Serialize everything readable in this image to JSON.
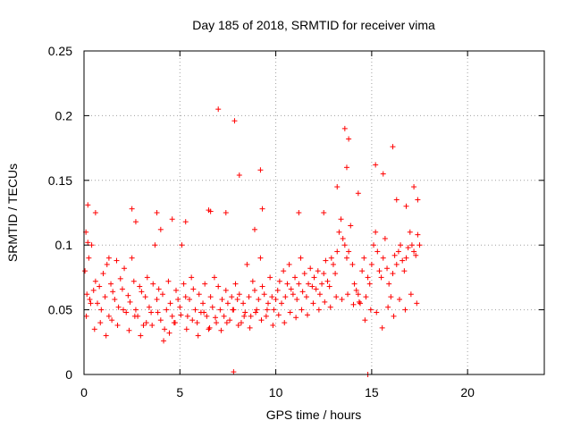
{
  "chart_data": {
    "type": "scatter",
    "title": "Day 185 of 2018, SRMTID for receiver vima",
    "xlabel": "GPS time / hours",
    "ylabel": "SRMTID / TECUs",
    "xlim": [
      0,
      24
    ],
    "ylim": [
      0,
      0.25
    ],
    "xticks": [
      0,
      5,
      10,
      15,
      20
    ],
    "xtick_labels": [
      "0",
      "5",
      "10",
      "15",
      "20"
    ],
    "yticks": [
      0,
      0.05,
      0.1,
      0.15,
      0.2,
      0.25
    ],
    "ytick_labels": [
      "0",
      "0.05",
      "0.1",
      "0.15",
      "0.2",
      "0.25"
    ],
    "grid": true,
    "marker": "+",
    "color": "#ff0000",
    "series": [
      {
        "name": "SRMTID",
        "x": [
          0.05,
          0.1,
          0.15,
          0.2,
          0.25,
          0.3,
          0.4,
          0.5,
          0.6,
          0.7,
          0.8,
          0.9,
          1.0,
          1.1,
          1.2,
          1.3,
          1.4,
          1.5,
          1.6,
          1.7,
          1.8,
          1.9,
          2.0,
          2.1,
          2.2,
          2.3,
          2.4,
          2.5,
          2.6,
          2.7,
          2.8,
          2.9,
          3.0,
          3.1,
          3.2,
          3.3,
          3.4,
          3.5,
          3.6,
          3.7,
          3.8,
          3.9,
          4.0,
          4.1,
          4.2,
          4.3,
          4.4,
          4.5,
          4.6,
          4.7,
          4.8,
          4.9,
          5.0,
          5.1,
          5.2,
          5.3,
          5.4,
          5.5,
          5.6,
          5.7,
          5.8,
          5.9,
          6.0,
          6.1,
          6.2,
          6.3,
          6.4,
          6.5,
          6.6,
          6.7,
          6.8,
          6.9,
          7.0,
          7.1,
          7.2,
          7.3,
          7.4,
          7.5,
          7.6,
          7.7,
          7.8,
          7.9,
          8.0,
          8.1,
          8.2,
          8.3,
          8.4,
          8.5,
          8.6,
          8.7,
          8.8,
          8.9,
          9.0,
          9.1,
          9.2,
          9.3,
          9.4,
          9.5,
          9.6,
          9.7,
          9.8,
          9.9,
          10.0,
          10.1,
          10.2,
          10.3,
          10.4,
          10.5,
          10.6,
          10.7,
          10.8,
          10.9,
          11.0,
          11.1,
          11.2,
          11.3,
          11.4,
          11.5,
          11.6,
          11.7,
          11.8,
          11.9,
          12.0,
          12.1,
          12.2,
          12.3,
          12.4,
          12.5,
          12.6,
          12.7,
          12.8,
          12.9,
          13.0,
          13.1,
          13.2,
          13.3,
          13.4,
          13.5,
          13.6,
          13.7,
          13.8,
          13.9,
          14.0,
          14.1,
          14.2,
          14.3,
          14.4,
          14.5,
          14.6,
          14.7,
          14.8,
          14.9,
          15.0,
          15.1,
          15.2,
          15.3,
          15.4,
          15.5,
          15.6,
          15.7,
          15.8,
          15.9,
          16.0,
          16.1,
          16.2,
          16.3,
          16.4,
          16.5,
          16.6,
          16.7,
          16.8,
          16.9,
          17.0,
          17.1,
          17.2,
          17.3,
          17.4,
          17.5,
          0.12,
          0.35,
          0.55,
          0.85,
          1.15,
          1.45,
          1.75,
          2.05,
          2.35,
          2.65,
          2.95,
          3.25,
          3.55,
          3.85,
          4.15,
          4.45,
          4.75,
          5.05,
          5.35,
          5.65,
          5.95,
          6.25,
          6.55,
          6.85,
          7.15,
          7.45,
          7.75,
          8.05,
          8.35,
          8.65,
          8.95,
          9.25,
          9.55,
          9.85,
          10.15,
          10.45,
          10.75,
          11.05,
          11.35,
          11.65,
          11.95,
          12.25,
          12.55,
          12.85,
          13.15,
          13.45,
          13.75,
          14.05,
          14.35,
          14.65,
          14.95,
          15.25,
          15.55,
          15.85,
          16.15,
          16.45,
          16.75,
          17.05,
          17.35,
          0.2,
          0.6,
          1.3,
          2.5,
          2.7,
          3.8,
          4.0,
          4.6,
          5.3,
          6.5,
          6.6,
          7.0,
          7.4,
          7.8,
          7.85,
          8.1,
          8.9,
          9.2,
          9.3,
          11.2,
          12.5,
          13.2,
          13.6,
          13.7,
          13.8,
          14.3,
          14.8,
          15.2,
          15.6,
          16.1,
          16.3,
          16.8,
          17.2,
          17.4
        ],
        "y": [
          0.08,
          0.11,
          0.062,
          0.131,
          0.09,
          0.058,
          0.1,
          0.065,
          0.072,
          0.055,
          0.068,
          0.05,
          0.078,
          0.06,
          0.085,
          0.045,
          0.07,
          0.064,
          0.058,
          0.088,
          0.052,
          0.074,
          0.066,
          0.082,
          0.048,
          0.061,
          0.056,
          0.09,
          0.072,
          0.05,
          0.045,
          0.068,
          0.064,
          0.038,
          0.06,
          0.075,
          0.052,
          0.048,
          0.07,
          0.1,
          0.058,
          0.066,
          0.042,
          0.062,
          0.035,
          0.05,
          0.072,
          0.055,
          0.045,
          0.04,
          0.065,
          0.058,
          0.052,
          0.1,
          0.07,
          0.06,
          0.045,
          0.058,
          0.075,
          0.066,
          0.05,
          0.04,
          0.062,
          0.048,
          0.055,
          0.07,
          0.045,
          0.035,
          0.06,
          0.052,
          0.075,
          0.04,
          0.068,
          0.05,
          0.058,
          0.045,
          0.065,
          0.055,
          0.042,
          0.06,
          0.05,
          0.07,
          0.058,
          0.062,
          0.04,
          0.055,
          0.048,
          0.085,
          0.06,
          0.045,
          0.072,
          0.065,
          0.05,
          0.058,
          0.09,
          0.068,
          0.062,
          0.045,
          0.055,
          0.075,
          0.06,
          0.05,
          0.058,
          0.065,
          0.072,
          0.055,
          0.08,
          0.06,
          0.07,
          0.085,
          0.066,
          0.062,
          0.075,
          0.058,
          0.07,
          0.09,
          0.064,
          0.078,
          0.06,
          0.07,
          0.082,
          0.068,
          0.075,
          0.066,
          0.08,
          0.062,
          0.07,
          0.078,
          0.088,
          0.072,
          0.068,
          0.09,
          0.085,
          0.078,
          0.095,
          0.11,
          0.12,
          0.105,
          0.1,
          0.09,
          0.095,
          0.115,
          0.085,
          0.07,
          0.065,
          0.062,
          0.055,
          0.08,
          0.09,
          0.06,
          0.075,
          0.07,
          0.085,
          0.1,
          0.11,
          0.095,
          0.08,
          0.075,
          0.09,
          0.105,
          0.082,
          0.07,
          0.06,
          0.078,
          0.092,
          0.085,
          0.095,
          0.1,
          0.088,
          0.08,
          0.09,
          0.098,
          0.11,
          0.1,
          0.095,
          0.092,
          0.108,
          0.1,
          0.045,
          0.055,
          0.035,
          0.04,
          0.03,
          0.042,
          0.038,
          0.05,
          0.034,
          0.045,
          0.03,
          0.04,
          0.038,
          0.048,
          0.026,
          0.032,
          0.04,
          0.046,
          0.035,
          0.042,
          0.03,
          0.048,
          0.036,
          0.044,
          0.034,
          0.04,
          0.05,
          0.038,
          0.045,
          0.036,
          0.048,
          0.042,
          0.05,
          0.038,
          0.046,
          0.04,
          0.048,
          0.044,
          0.05,
          0.046,
          0.055,
          0.05,
          0.056,
          0.052,
          0.06,
          0.058,
          0.062,
          0.054,
          0.056,
          0.042,
          0.05,
          0.048,
          0.036,
          0.052,
          0.045,
          0.058,
          0.05,
          0.062,
          0.055,
          0.102,
          0.125,
          0.09,
          0.128,
          0.118,
          0.125,
          0.112,
          0.12,
          0.118,
          0.127,
          0.126,
          0.205,
          0.125,
          0.002,
          0.196,
          0.154,
          0.112,
          0.158,
          0.128,
          0.125,
          0.125,
          0.145,
          0.19,
          0.16,
          0.182,
          0.14,
          0.0,
          0.162,
          0.155,
          0.176,
          0.135,
          0.13,
          0.145,
          0.135
        ]
      }
    ]
  }
}
